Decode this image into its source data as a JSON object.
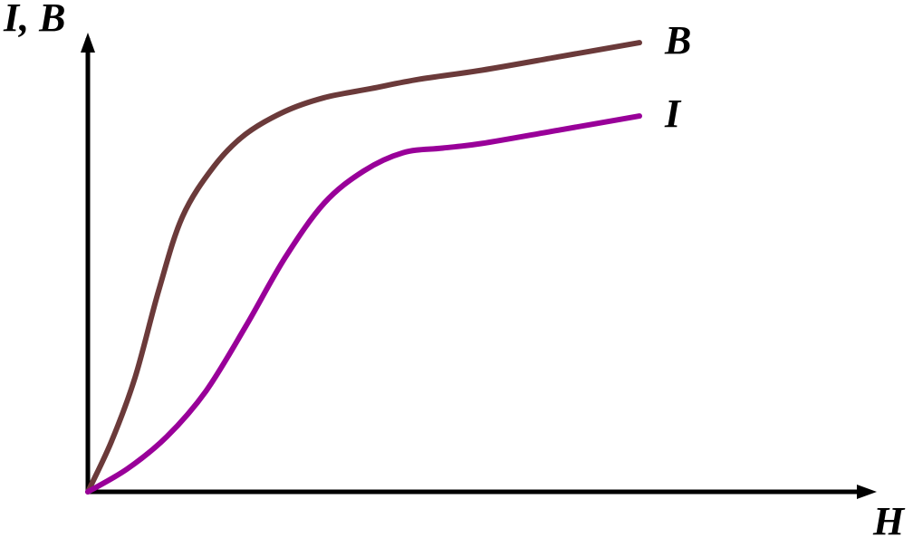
{
  "chart_data": {
    "type": "line",
    "title": "",
    "xlabel": "H",
    "ylabel": "I, B",
    "grid": false,
    "legend": "none",
    "xlim": [
      0,
      10
    ],
    "ylim": [
      0,
      10
    ],
    "series": [
      {
        "name": "B",
        "color": "#6b3a3a",
        "x": [
          0,
          0.3,
          0.6,
          0.9,
          1.2,
          1.6,
          2.0,
          2.5,
          3.0,
          3.6,
          4.2,
          5.0,
          6.0,
          7.0
        ],
        "y": [
          0,
          1.1,
          2.5,
          4.4,
          6.0,
          7.1,
          7.8,
          8.3,
          8.6,
          8.8,
          9.0,
          9.2,
          9.5,
          9.8
        ]
      },
      {
        "name": "I",
        "color": "#990099",
        "x": [
          0,
          0.5,
          1.0,
          1.5,
          2.0,
          2.5,
          3.0,
          3.5,
          4.0,
          4.5,
          5.0,
          6.0,
          7.0
        ],
        "y": [
          0,
          0.5,
          1.2,
          2.2,
          3.6,
          5.1,
          6.3,
          7.0,
          7.4,
          7.5,
          7.6,
          7.9,
          8.2
        ]
      }
    ]
  }
}
